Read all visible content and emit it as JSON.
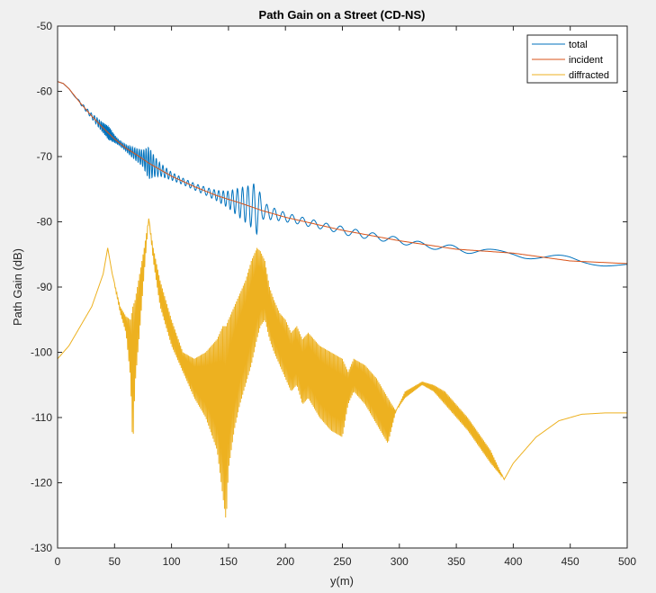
{
  "chart_data": {
    "type": "line",
    "title": "Path Gain on a Street (CD-NS)",
    "xlabel": "y(m)",
    "ylabel": "Path Gain (dB)",
    "xlim": [
      0,
      500
    ],
    "ylim": [
      -130,
      -50
    ],
    "xticks": [
      0,
      50,
      100,
      150,
      200,
      250,
      300,
      350,
      400,
      450,
      500
    ],
    "yticks": [
      -130,
      -120,
      -110,
      -100,
      -90,
      -80,
      -70,
      -60,
      -50
    ],
    "grid": false,
    "legend_position": "top-right",
    "series": [
      {
        "name": "total",
        "color": "#0072bd",
        "style": "oscillating",
        "x": [
          0,
          5,
          10,
          20,
          30,
          40,
          45,
          50,
          55,
          60,
          65,
          70,
          75,
          80,
          85,
          90,
          100,
          110,
          120,
          130,
          140,
          150,
          160,
          170,
          175,
          180,
          190,
          200,
          210,
          220,
          230,
          240,
          250,
          260,
          270,
          280,
          290,
          300,
          310,
          320,
          330,
          340,
          350,
          360,
          370,
          380,
          390,
          400,
          410,
          420,
          430,
          440,
          450,
          460,
          470,
          480,
          490,
          500
        ],
        "y": [
          -58.5,
          -58.8,
          -59.6,
          -61.8,
          -63.8,
          -65.6,
          -66.4,
          -67.3,
          -68.0,
          -68.7,
          -69.3,
          -69.8,
          -70.3,
          -71.0,
          -71.5,
          -72.0,
          -73.0,
          -73.8,
          -74.6,
          -75.3,
          -76.0,
          -76.6,
          -77.1,
          -77.6,
          -77.9,
          -78.3,
          -78.8,
          -79.3,
          -79.7,
          -80.1,
          -80.5,
          -80.9,
          -81.3,
          -81.7,
          -82.0,
          -82.3,
          -82.6,
          -82.9,
          -83.2,
          -83.5,
          -83.8,
          -84.0,
          -84.2,
          -84.3,
          -84.4,
          -84.5,
          -84.6,
          -84.8,
          -85.1,
          -85.4,
          -85.7,
          -85.9,
          -86.0,
          -86.2,
          -86.3,
          -86.4,
          -86.4,
          -86.4
        ],
        "amp": [
          0,
          0,
          0,
          0.2,
          0.4,
          0.8,
          1.1,
          0.6,
          0.4,
          0.5,
          0.8,
          1.0,
          1.3,
          2.5,
          1.6,
          1.0,
          0.6,
          0.5,
          0.5,
          0.6,
          0.8,
          1.3,
          2.3,
          3.2,
          4.0,
          1.3,
          0.9,
          0.7,
          0.6,
          0.6,
          0.55,
          0.5,
          0.6,
          0.6,
          0.55,
          0.5,
          0.5,
          0.5,
          0.45,
          0.4,
          0.4,
          0.5,
          0.6,
          0.55,
          0.4,
          0.3,
          0.25,
          0.3,
          0.5,
          0.6,
          0.7,
          0.8,
          0.75,
          0.6,
          0.5,
          0.4,
          0.3,
          0.2
        ],
        "period": [
          20,
          20,
          20,
          4,
          3,
          1.2,
          1.0,
          1.2,
          1.4,
          1.6,
          1.8,
          2.0,
          2.0,
          2.0,
          2.5,
          3.0,
          3.5,
          4.0,
          4.5,
          5.0,
          4.0,
          4.0,
          4.5,
          5.0,
          5.5,
          6.0,
          7.0,
          8.0,
          9.0,
          10,
          11,
          12,
          13,
          14,
          15,
          17,
          19,
          21,
          23,
          25,
          27,
          30,
          33,
          36,
          40,
          45,
          50,
          55,
          60,
          65,
          70,
          75,
          80,
          85,
          90,
          95,
          100,
          100
        ]
      },
      {
        "name": "incident",
        "color": "#d95319",
        "style": "smooth",
        "x": [
          0,
          5,
          10,
          20,
          30,
          40,
          50,
          60,
          70,
          80,
          90,
          100,
          120,
          140,
          160,
          180,
          200,
          250,
          300,
          350,
          400,
          450,
          500
        ],
        "y": [
          -58.5,
          -58.8,
          -59.6,
          -61.8,
          -63.8,
          -65.6,
          -67.3,
          -68.7,
          -69.8,
          -71.0,
          -72.0,
          -73.0,
          -74.6,
          -76.0,
          -77.1,
          -78.3,
          -79.3,
          -81.3,
          -82.9,
          -84.2,
          -84.8,
          -86.0,
          -86.4
        ]
      },
      {
        "name": "diffracted",
        "color": "#edb120",
        "style": "envelope",
        "x": [
          0,
          10,
          20,
          30,
          40,
          44,
          48,
          55,
          60,
          64,
          66,
          68,
          72,
          76,
          80,
          84,
          90,
          100,
          110,
          120,
          130,
          140,
          145,
          148,
          150,
          155,
          160,
          165,
          170,
          175,
          178,
          182,
          186,
          190,
          195,
          200,
          205,
          210,
          215,
          220,
          230,
          240,
          250,
          255,
          260,
          270,
          280,
          290,
          297,
          305,
          320,
          330,
          340,
          360,
          380,
          392,
          400,
          420,
          440,
          460,
          480,
          500
        ],
        "upper": [
          -101,
          -99,
          -96,
          -93,
          -88,
          -84,
          -88,
          -93,
          -94.5,
          -95,
          -93,
          -92,
          -88,
          -84,
          -79.5,
          -84,
          -89,
          -95,
          -100,
          -101,
          -100,
          -98,
          -96,
          -96,
          -95,
          -93,
          -91,
          -89,
          -86,
          -84,
          -84.5,
          -86,
          -90,
          -92,
          -94,
          -95,
          -97,
          -96,
          -98,
          -97,
          -99,
          -100,
          -101,
          -103,
          -101,
          -102,
          -104,
          -107,
          -109,
          -106,
          -104.5,
          -105,
          -106,
          -110,
          -115,
          -119.5,
          -117,
          -113,
          -110.5,
          -109.5,
          -109.3,
          -109.3
        ],
        "lower": [
          -101,
          -99,
          -96,
          -93,
          -88,
          -84,
          -88,
          -94,
          -97,
          -104,
          -115,
          -105,
          -97,
          -88,
          -79.5,
          -86,
          -93,
          -99,
          -103,
          -107,
          -110,
          -115,
          -122,
          -126,
          -118,
          -112,
          -108,
          -105,
          -102,
          -98,
          -96,
          -95,
          -98,
          -100,
          -102,
          -104,
          -106,
          -105,
          -108,
          -107,
          -110,
          -112,
          -113,
          -108,
          -106,
          -108,
          -111,
          -114,
          -109,
          -107,
          -105,
          -106,
          -108,
          -112,
          -117,
          -119.5,
          -117,
          -113,
          -110.5,
          -109.5,
          -109.3,
          -109.3
        ]
      }
    ]
  }
}
